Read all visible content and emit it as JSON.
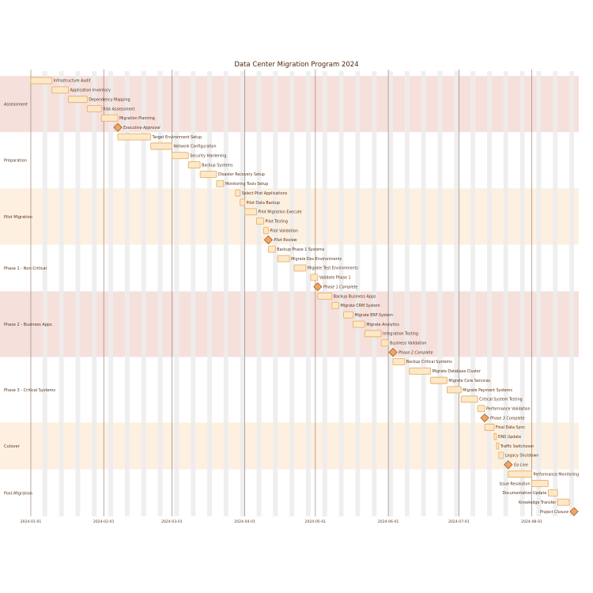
{
  "chart_data": {
    "type": "gantt",
    "title": "Data Center Migration Program 2024",
    "x_ticks": [
      "2024-01-01",
      "2024-02-01",
      "2024-03-01",
      "2024-04-01",
      "2024-05-01",
      "2024-06-01",
      "2024-07-01",
      "2024-08-01"
    ],
    "x_range": [
      "2023-12-31",
      "2024-08-21"
    ],
    "grid": "weekly shading",
    "colors": {
      "band_a": "#f6e0dc",
      "band_b": "#fdf0e0",
      "bar_fill": "#fde8c8",
      "bar_stroke": "#e8b06a",
      "milestone_fill": "#f0a860",
      "milestone_stroke": "#a05828",
      "text": "#5a3418",
      "title": "#4a2810",
      "weekend": "#ececec",
      "month_line": "#8a7060"
    },
    "sections": [
      {
        "name": "Assessment",
        "band": "a",
        "tasks": [
          {
            "label": "Infrastructure Audit",
            "start": "2024-01-01",
            "end": "2024-01-10"
          },
          {
            "label": "Application Inventory",
            "start": "2024-01-10",
            "end": "2024-01-17"
          },
          {
            "label": "Dependency Mapping",
            "start": "2024-01-17",
            "end": "2024-01-25"
          },
          {
            "label": "Risk Assessment",
            "start": "2024-01-25",
            "end": "2024-01-31"
          },
          {
            "label": "Migration Planning",
            "start": "2024-01-31",
            "end": "2024-02-07"
          },
          {
            "label": "Executive Approval",
            "milestone": true,
            "date": "2024-02-07"
          }
        ]
      },
      {
        "name": "Preparation",
        "band": "none",
        "tasks": [
          {
            "label": "Target Environment Setup",
            "start": "2024-02-07",
            "end": "2024-02-21"
          },
          {
            "label": "Network Configuration",
            "start": "2024-02-21",
            "end": "2024-03-01"
          },
          {
            "label": "Security Hardening",
            "start": "2024-03-01",
            "end": "2024-03-08"
          },
          {
            "label": "Backup Systems",
            "start": "2024-03-08",
            "end": "2024-03-13"
          },
          {
            "label": "Disaster Recovery Setup",
            "start": "2024-03-13",
            "end": "2024-03-20"
          },
          {
            "label": "Monitoring Tools Setup",
            "start": "2024-03-20",
            "end": "2024-03-23"
          }
        ]
      },
      {
        "name": "Pilot Migration",
        "band": "b",
        "tasks": [
          {
            "label": "Select Pilot Applications",
            "start": "2024-03-28",
            "end": "2024-03-30"
          },
          {
            "label": "Pilot Data Backup",
            "start": "2024-03-30",
            "end": "2024-04-01"
          },
          {
            "label": "Pilot Migration Execute",
            "start": "2024-04-01",
            "end": "2024-04-06"
          },
          {
            "label": "Pilot Testing",
            "start": "2024-04-06",
            "end": "2024-04-09"
          },
          {
            "label": "Pilot Validation",
            "start": "2024-04-09",
            "end": "2024-04-11"
          },
          {
            "label": "Pilot Review",
            "milestone": true,
            "date": "2024-04-11"
          }
        ]
      },
      {
        "name": "Phase 1 - Non-Critical",
        "band": "none",
        "tasks": [
          {
            "label": "Backup Phase 1 Systems",
            "start": "2024-04-11",
            "end": "2024-04-14"
          },
          {
            "label": "Migrate Dev Environments",
            "start": "2024-04-15",
            "end": "2024-04-20"
          },
          {
            "label": "Migrate Test Environments",
            "start": "2024-04-22",
            "end": "2024-04-27"
          },
          {
            "label": "Validate Phase 1",
            "start": "2024-04-29",
            "end": "2024-05-02"
          },
          {
            "label": "Phase 1 Complete",
            "milestone": true,
            "date": "2024-05-02"
          }
        ]
      },
      {
        "name": "Phase 2 - Business Apps",
        "band": "a",
        "tasks": [
          {
            "label": "Backup Business Apps",
            "start": "2024-05-02",
            "end": "2024-05-08"
          },
          {
            "label": "Migrate CRM System",
            "start": "2024-05-08",
            "end": "2024-05-11"
          },
          {
            "label": "Migrate ERP System",
            "start": "2024-05-13",
            "end": "2024-05-17"
          },
          {
            "label": "Migrate Analytics",
            "start": "2024-05-17",
            "end": "2024-05-22"
          },
          {
            "label": "Integration Testing",
            "start": "2024-05-22",
            "end": "2024-05-29"
          },
          {
            "label": "Business Validation",
            "start": "2024-05-29",
            "end": "2024-06-01"
          },
          {
            "label": "Phase 2 Complete",
            "milestone": true,
            "date": "2024-06-03"
          }
        ]
      },
      {
        "name": "Phase 3 - Critical Systems",
        "band": "none",
        "tasks": [
          {
            "label": "Backup Critical Systems",
            "start": "2024-06-03",
            "end": "2024-06-08"
          },
          {
            "label": "Migrate Database Cluster",
            "start": "2024-06-10",
            "end": "2024-06-19"
          },
          {
            "label": "Migrate Core Services",
            "start": "2024-06-19",
            "end": "2024-06-26"
          },
          {
            "label": "Migrate Payment Systems",
            "start": "2024-06-26",
            "end": "2024-07-02"
          },
          {
            "label": "Critical System Testing",
            "start": "2024-07-02",
            "end": "2024-07-09"
          },
          {
            "label": "Performance Validation",
            "start": "2024-07-09",
            "end": "2024-07-12"
          },
          {
            "label": "Phase 3 Complete",
            "milestone": true,
            "date": "2024-07-12"
          }
        ]
      },
      {
        "name": "Cutover",
        "band": "b",
        "tasks": [
          {
            "label": "Final Data Sync",
            "start": "2024-07-12",
            "end": "2024-07-16"
          },
          {
            "label": "DNS Update",
            "start": "2024-07-16",
            "end": "2024-07-17"
          },
          {
            "label": "Traffic Switchover",
            "start": "2024-07-17",
            "end": "2024-07-18"
          },
          {
            "label": "Legacy Shutdown",
            "start": "2024-07-18",
            "end": "2024-07-20"
          },
          {
            "label": "Go Live",
            "milestone": true,
            "date": "2024-07-22"
          }
        ]
      },
      {
        "name": "Post-Migration",
        "band": "none",
        "tasks": [
          {
            "label": "Performance Monitoring",
            "start": "2024-07-22",
            "end": "2024-08-01"
          },
          {
            "label": "Issue Resolution",
            "start": "2024-08-01",
            "end": "2024-08-08"
          },
          {
            "label": "Documentation Update",
            "start": "2024-08-08",
            "end": "2024-08-12"
          },
          {
            "label": "Knowledge Transfer",
            "start": "2024-08-12",
            "end": "2024-08-17"
          },
          {
            "label": "Project Closure",
            "milestone": true,
            "date": "2024-08-19"
          }
        ]
      }
    ]
  }
}
